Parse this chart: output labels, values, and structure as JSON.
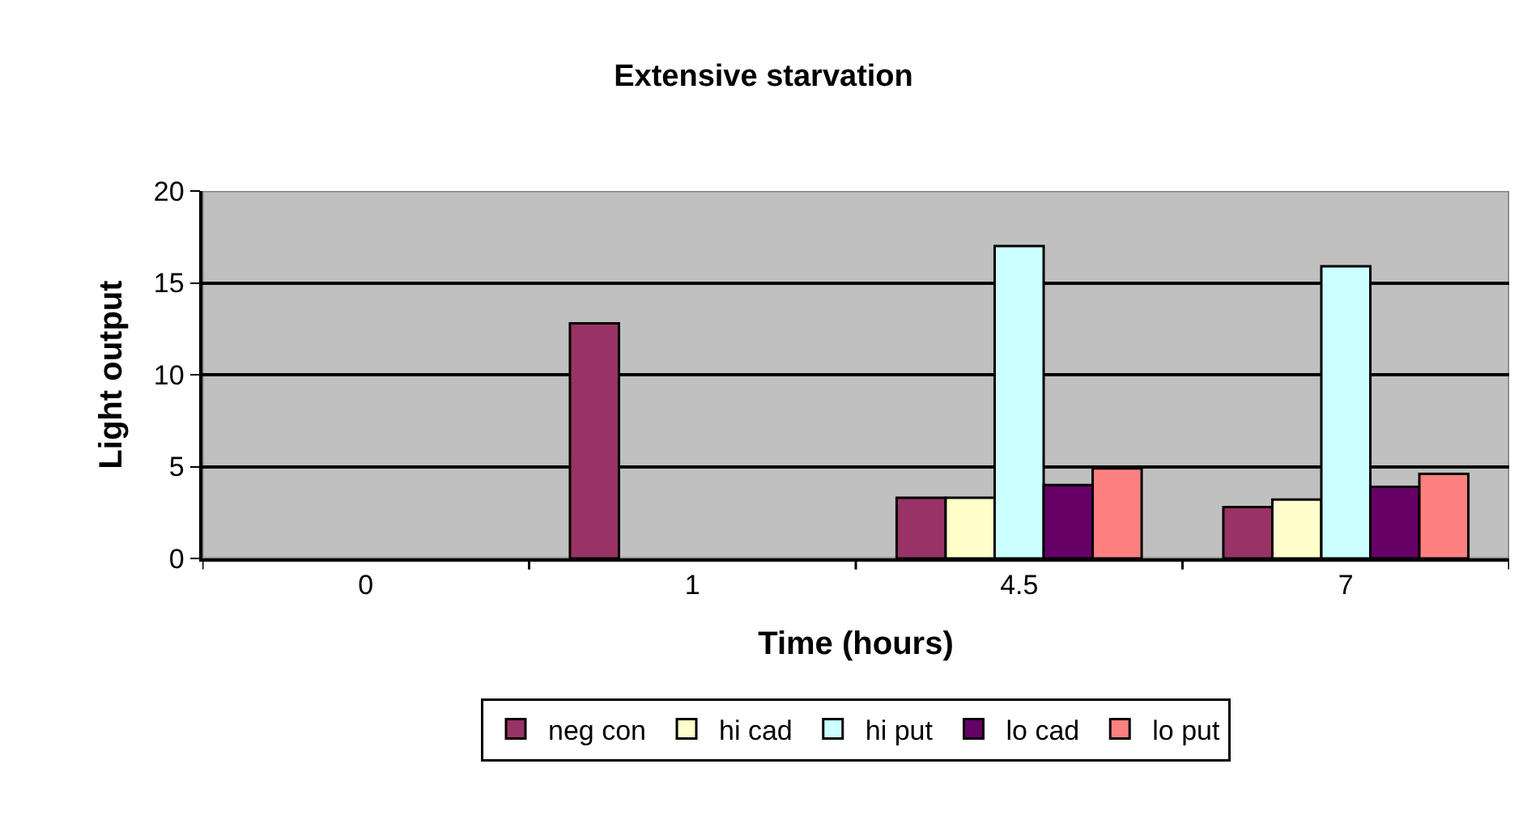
{
  "chart_data": {
    "type": "bar",
    "title": "Extensive starvation",
    "xlabel": "Time (hours)",
    "ylabel": "Light output",
    "categories": [
      "0",
      "1",
      "4.5",
      "7"
    ],
    "series": [
      {
        "name": "neg con",
        "color": "#993366",
        "values": [
          null,
          12.8,
          3.3,
          2.8
        ]
      },
      {
        "name": "hi cad",
        "color": "#ffffcc",
        "values": [
          null,
          null,
          3.3,
          3.2
        ]
      },
      {
        "name": "hi put",
        "color": "#ccffff",
        "values": [
          null,
          null,
          17.0,
          15.9
        ]
      },
      {
        "name": "lo cad",
        "color": "#660066",
        "values": [
          null,
          null,
          4.0,
          3.9
        ]
      },
      {
        "name": "lo put",
        "color": "#ff8080",
        "values": [
          null,
          null,
          4.9,
          4.6
        ]
      }
    ],
    "ylim": [
      0,
      20
    ],
    "yticks": [
      0,
      5,
      10,
      15,
      20
    ],
    "grid": "y",
    "legend": "bottom"
  }
}
